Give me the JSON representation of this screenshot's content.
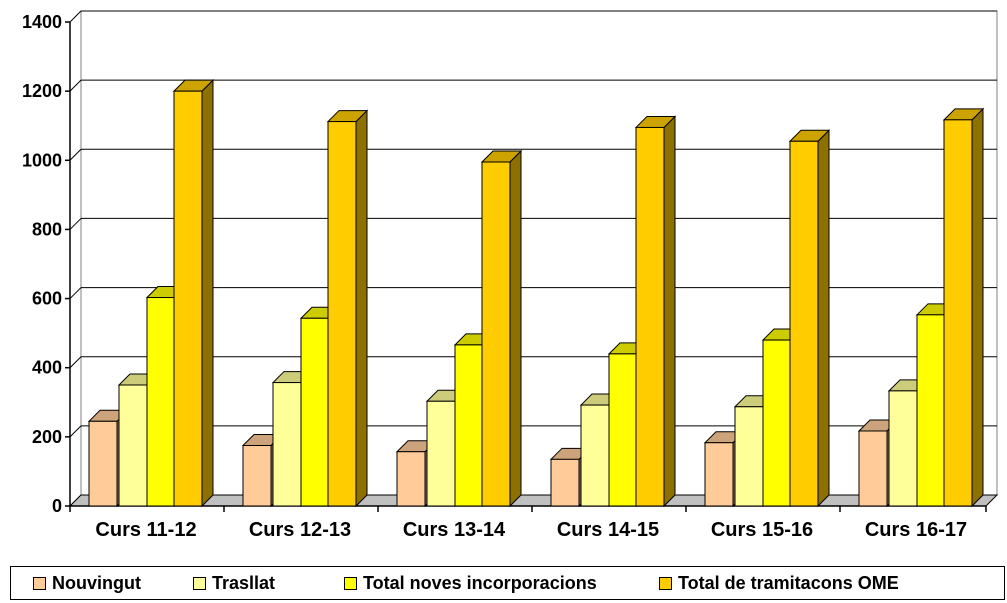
{
  "chart_data": {
    "type": "bar",
    "title": "",
    "xlabel": "",
    "ylabel": "",
    "categories": [
      "Curs 11-12",
      "Curs 12-13",
      "Curs 13-14",
      "Curs 14-15",
      "Curs 15-16",
      "Curs 16-17"
    ],
    "ylim": [
      0,
      1400
    ],
    "yticks": [
      "0",
      "200",
      "400",
      "600",
      "800",
      "1000",
      "1200",
      "1400"
    ],
    "grid": true,
    "legend_position": "bottom",
    "series": [
      {
        "name": "Nouvingut",
        "color": "#FFCC99",
        "values": [
          245,
          175,
          157,
          135,
          183,
          217
        ]
      },
      {
        "name": "Trasllat",
        "color": "#FFFF99",
        "values": [
          350,
          357,
          303,
          292,
          287,
          333
        ]
      },
      {
        "name": "Total noves incorporacions",
        "color": "#FFFF00",
        "values": [
          603,
          543,
          466,
          440,
          480,
          553
        ]
      },
      {
        "name": "Total de tramitacons OME",
        "color": "#FFCC00",
        "values": [
          1200,
          1112,
          995,
          1095,
          1055,
          1117
        ]
      }
    ]
  }
}
